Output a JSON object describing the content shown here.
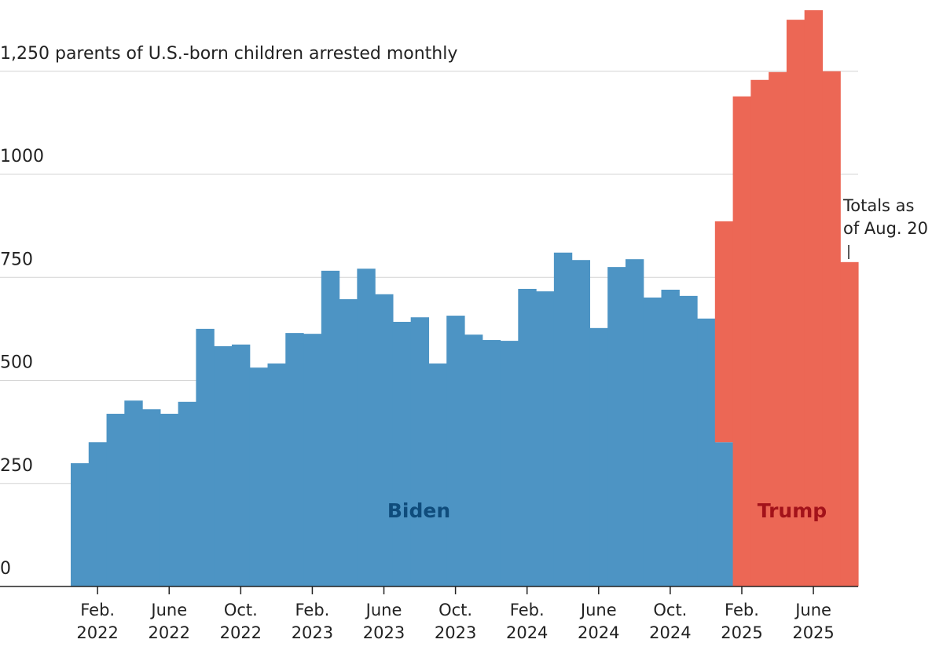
{
  "chart_data": {
    "type": "bar",
    "stacked": true,
    "categories": [
      null,
      "Feb. 2022",
      null,
      null,
      null,
      "June 2022",
      null,
      null,
      null,
      "Oct. 2022",
      null,
      null,
      null,
      "Feb. 2023",
      null,
      null,
      null,
      "June 2023",
      null,
      null,
      null,
      "Oct. 2023",
      null,
      null,
      null,
      "Feb. 2024",
      null,
      null,
      null,
      "June 2024",
      null,
      null,
      null,
      "Oct. 2024",
      null,
      null,
      null,
      "Feb. 2025",
      null,
      null,
      null,
      "June 2025",
      null,
      null
    ],
    "series": [
      {
        "name": "Biden",
        "color": "#4d94c4",
        "label_color": "#0f4c7c",
        "values": [
          299,
          350,
          419,
          451,
          430,
          419,
          448,
          625,
          583,
          587,
          531,
          541,
          615,
          613,
          766,
          697,
          771,
          709,
          642,
          653,
          541,
          657,
          611,
          598,
          596,
          722,
          716,
          810,
          792,
          627,
          775,
          794,
          701,
          720,
          705,
          650,
          350,
          null,
          null,
          null,
          null,
          null,
          null,
          null
        ]
      },
      {
        "name": "Trump",
        "color": "#ec6755",
        "label_color": "#a3121a",
        "values": [
          null,
          null,
          null,
          null,
          null,
          null,
          null,
          null,
          null,
          null,
          null,
          null,
          null,
          null,
          null,
          null,
          null,
          null,
          null,
          null,
          null,
          null,
          null,
          null,
          null,
          null,
          null,
          null,
          null,
          null,
          null,
          null,
          null,
          null,
          null,
          null,
          536,
          1189,
          1229,
          1248,
          1375,
          1398,
          1250,
          787
        ]
      }
    ],
    "ylim": [
      0,
      1400
    ],
    "yticks": [
      0,
      250,
      500,
      750,
      1000,
      {
        "value": 1250,
        "label": "1,250 parents of U.S.-born children arrested monthly"
      }
    ],
    "grid": true,
    "annotation": "Totals as of Aug. 20"
  }
}
